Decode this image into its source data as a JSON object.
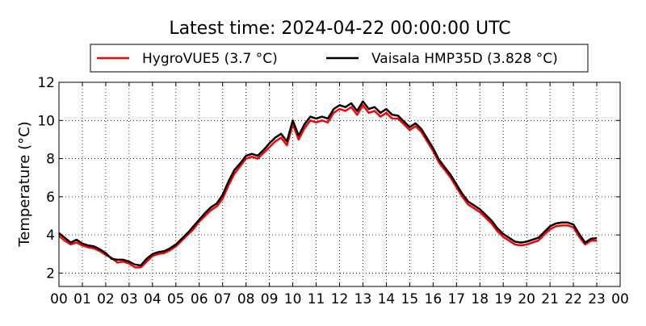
{
  "chart_data": {
    "type": "line",
    "title": "Latest time: 2024-04-22 00:00:00 UTC",
    "ylabel": "Temperature (°C)",
    "xlabel": "",
    "xlim": [
      0,
      24
    ],
    "ylim": [
      1.3,
      12
    ],
    "grid": true,
    "legend_position": "top",
    "x_ticks": [
      "00",
      "01",
      "02",
      "03",
      "04",
      "05",
      "06",
      "07",
      "08",
      "09",
      "10",
      "11",
      "12",
      "13",
      "14",
      "15",
      "16",
      "17",
      "18",
      "19",
      "20",
      "21",
      "22",
      "23",
      "00"
    ],
    "y_ticks": [
      2,
      4,
      6,
      8,
      10,
      12
    ],
    "x_hours": [
      0,
      0.25,
      0.5,
      0.75,
      1,
      1.25,
      1.5,
      1.75,
      2,
      2.25,
      2.5,
      2.75,
      3,
      3.25,
      3.5,
      3.75,
      4,
      4.25,
      4.5,
      4.75,
      5,
      5.25,
      5.5,
      5.75,
      6,
      6.25,
      6.5,
      6.75,
      7,
      7.25,
      7.5,
      7.75,
      8,
      8.25,
      8.5,
      8.75,
      9,
      9.25,
      9.5,
      9.75,
      10,
      10.25,
      10.5,
      10.75,
      11,
      11.25,
      11.5,
      11.75,
      12,
      12.25,
      12.5,
      12.75,
      13,
      13.25,
      13.5,
      13.75,
      14,
      14.25,
      14.5,
      14.75,
      15,
      15.25,
      15.5,
      15.75,
      16,
      16.25,
      16.5,
      16.75,
      17,
      17.25,
      17.5,
      17.75,
      18,
      18.25,
      18.5,
      18.75,
      19,
      19.25,
      19.5,
      19.75,
      20,
      20.25,
      20.5,
      20.75,
      21,
      21.25,
      21.5,
      21.75,
      22,
      22.25,
      22.5,
      22.75,
      23,
      23.25,
      23.5,
      23.75,
      24
    ],
    "series": [
      {
        "name": "HygroVUE5 (3.7 °C)",
        "color": "#ff0000",
        "values": [
          3.95,
          3.7,
          3.5,
          3.6,
          3.45,
          3.35,
          3.3,
          3.15,
          2.95,
          2.8,
          2.55,
          2.6,
          2.5,
          2.3,
          2.3,
          2.6,
          2.9,
          3.0,
          3.05,
          3.2,
          3.4,
          3.7,
          4.0,
          4.3,
          4.7,
          5.0,
          5.3,
          5.5,
          5.9,
          6.6,
          7.2,
          7.6,
          8.0,
          8.1,
          8.0,
          8.3,
          8.6,
          8.9,
          9.1,
          8.7,
          9.8,
          9.0,
          9.6,
          10.0,
          9.9,
          10.0,
          9.9,
          10.4,
          10.6,
          10.5,
          10.7,
          10.3,
          10.8,
          10.4,
          10.5,
          10.2,
          10.4,
          10.1,
          10.1,
          9.8,
          9.5,
          9.7,
          9.4,
          8.9,
          8.4,
          7.8,
          7.4,
          7.0,
          6.5,
          6.0,
          5.6,
          5.4,
          5.2,
          4.9,
          4.6,
          4.2,
          3.9,
          3.7,
          3.5,
          3.45,
          3.5,
          3.6,
          3.7,
          4.0,
          4.3,
          4.45,
          4.5,
          4.5,
          4.4,
          3.9,
          3.5,
          3.7,
          3.7
        ]
      },
      {
        "name": "Vaisala HMP35D (3.828 °C)",
        "color": "#000000",
        "values": [
          4.1,
          3.85,
          3.6,
          3.75,
          3.55,
          3.45,
          3.4,
          3.25,
          3.05,
          2.75,
          2.7,
          2.7,
          2.6,
          2.45,
          2.4,
          2.75,
          3.0,
          3.1,
          3.15,
          3.3,
          3.5,
          3.8,
          4.1,
          4.45,
          4.8,
          5.15,
          5.45,
          5.65,
          6.1,
          6.8,
          7.4,
          7.75,
          8.15,
          8.25,
          8.15,
          8.45,
          8.8,
          9.1,
          9.3,
          8.9,
          10.0,
          9.2,
          9.8,
          10.2,
          10.1,
          10.2,
          10.1,
          10.6,
          10.8,
          10.7,
          10.9,
          10.5,
          11.0,
          10.6,
          10.7,
          10.4,
          10.6,
          10.3,
          10.25,
          9.95,
          9.65,
          9.85,
          9.55,
          9.05,
          8.55,
          7.95,
          7.55,
          7.15,
          6.65,
          6.15,
          5.75,
          5.55,
          5.35,
          5.05,
          4.75,
          4.35,
          4.05,
          3.85,
          3.65,
          3.6,
          3.65,
          3.75,
          3.85,
          4.15,
          4.45,
          4.6,
          4.65,
          4.65,
          4.55,
          4.05,
          3.6,
          3.8,
          3.83
        ]
      }
    ]
  }
}
